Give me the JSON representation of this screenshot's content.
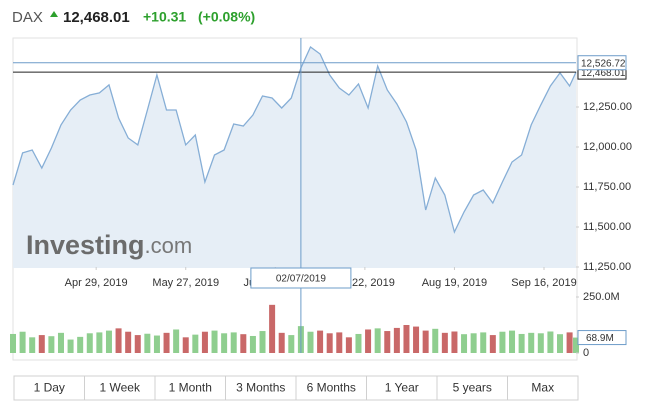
{
  "header": {
    "symbol": "DAX",
    "change": "+10.31",
    "change_pct": "(+0.08%)",
    "watermark_bold": "Investing",
    "watermark_rest": ".com"
  },
  "range_buttons": [
    "1 Day",
    "1 Week",
    "1 Month",
    "3 Months",
    "6 Months",
    "1 Year",
    "5 years",
    "Max"
  ],
  "chart_data": [
    {
      "type": "area",
      "line_color": "#86aed6",
      "fill_color": "#e6eef6",
      "x": [
        "2019-04-03",
        "2019-04-06",
        "2019-04-09",
        "2019-04-12",
        "2019-04-15",
        "2019-04-18",
        "2019-04-21",
        "2019-04-24",
        "2019-04-27",
        "2019-04-30",
        "2019-05-03",
        "2019-05-06",
        "2019-05-09",
        "2019-05-12",
        "2019-05-15",
        "2019-05-18",
        "2019-05-21",
        "2019-05-24",
        "2019-05-27",
        "2019-05-30",
        "2019-06-02",
        "2019-06-05",
        "2019-06-08",
        "2019-06-11",
        "2019-06-14",
        "2019-06-17",
        "2019-06-20",
        "2019-06-23",
        "2019-06-26",
        "2019-06-29",
        "2019-07-02",
        "2019-07-05",
        "2019-07-08",
        "2019-07-11",
        "2019-07-14",
        "2019-07-17",
        "2019-07-20",
        "2019-07-23",
        "2019-07-26",
        "2019-07-29",
        "2019-08-01",
        "2019-08-04",
        "2019-08-07",
        "2019-08-10",
        "2019-08-13",
        "2019-08-16",
        "2019-08-19",
        "2019-08-22",
        "2019-08-25",
        "2019-08-28",
        "2019-08-31",
        "2019-09-03",
        "2019-09-06",
        "2019-09-09",
        "2019-09-12",
        "2019-09-15",
        "2019-09-18",
        "2019-09-21",
        "2019-09-24",
        "2019-09-26"
      ],
      "values": [
        11762,
        11963,
        11981,
        11869,
        11994,
        12138,
        12231,
        12294,
        12325,
        12338,
        12388,
        12181,
        12056,
        12013,
        12231,
        12450,
        12231,
        12231,
        12013,
        12075,
        11781,
        11950,
        11981,
        12144,
        12131,
        12200,
        12319,
        12306,
        12244,
        12306,
        12494,
        12625,
        12581,
        12450,
        12369,
        12325,
        12394,
        12244,
        12506,
        12356,
        12269,
        12156,
        11981,
        11606,
        11806,
        11700,
        11469,
        11594,
        11700,
        11731,
        11650,
        11781,
        11906,
        11950,
        12138,
        12263,
        12381,
        12463,
        12381,
        12468.01
      ],
      "xlim": [
        "2019-04-03",
        "2019-09-26"
      ],
      "xticks": [
        {
          "value": "2019-04-29",
          "label": "Apr 29, 2019"
        },
        {
          "value": "2019-05-27",
          "label": "May 27, 2019"
        },
        {
          "value": "2019-06-24",
          "label": "Jun 24, 2019"
        },
        {
          "value": "2019-07-22",
          "label": "Jul 22, 2019"
        },
        {
          "value": "2019-08-19",
          "label": "Aug 19, 2019"
        },
        {
          "value": "2019-09-16",
          "label": "Sep 16, 2019"
        }
      ],
      "ylim": [
        11250,
        12700
      ],
      "yticks": [
        {
          "value": 11250,
          "label": "11,250.00"
        },
        {
          "value": 11500,
          "label": "11,500.00"
        },
        {
          "value": 11750,
          "label": "11,750.00"
        },
        {
          "value": 12000,
          "label": "12,000.00"
        },
        {
          "value": 12250,
          "label": "12,250.00"
        }
      ],
      "last_price": {
        "value": 12468.01,
        "label": "12,468.01"
      },
      "crosshair": {
        "date": {
          "value": "2019-07-02",
          "label": "02/07/2019"
        },
        "price": {
          "value": 12526.72,
          "label": "12,526.72"
        }
      }
    },
    {
      "type": "bar",
      "up_color": "#8fce8f",
      "down_color": "#c96868",
      "values": [
        85,
        95,
        70,
        80,
        75,
        90,
        60,
        72,
        88,
        92,
        100,
        110,
        95,
        80,
        86,
        78,
        90,
        105,
        70,
        82,
        95,
        100,
        88,
        92,
        84,
        76,
        98,
        215,
        90,
        80,
        120,
        95,
        100,
        88,
        92,
        70,
        85,
        105,
        110,
        98,
        112,
        125,
        118,
        100,
        108,
        90,
        96,
        84,
        88,
        92,
        80,
        95,
        100,
        85,
        90,
        88,
        96,
        84,
        92,
        68.9
      ],
      "ylim": [
        0,
        281.25
      ],
      "yticks": [
        0,
        {
          "value": 250,
          "label": "250.0M"
        }
      ],
      "last_volume": {
        "value": 68.9,
        "label": "68.9M"
      }
    }
  ]
}
